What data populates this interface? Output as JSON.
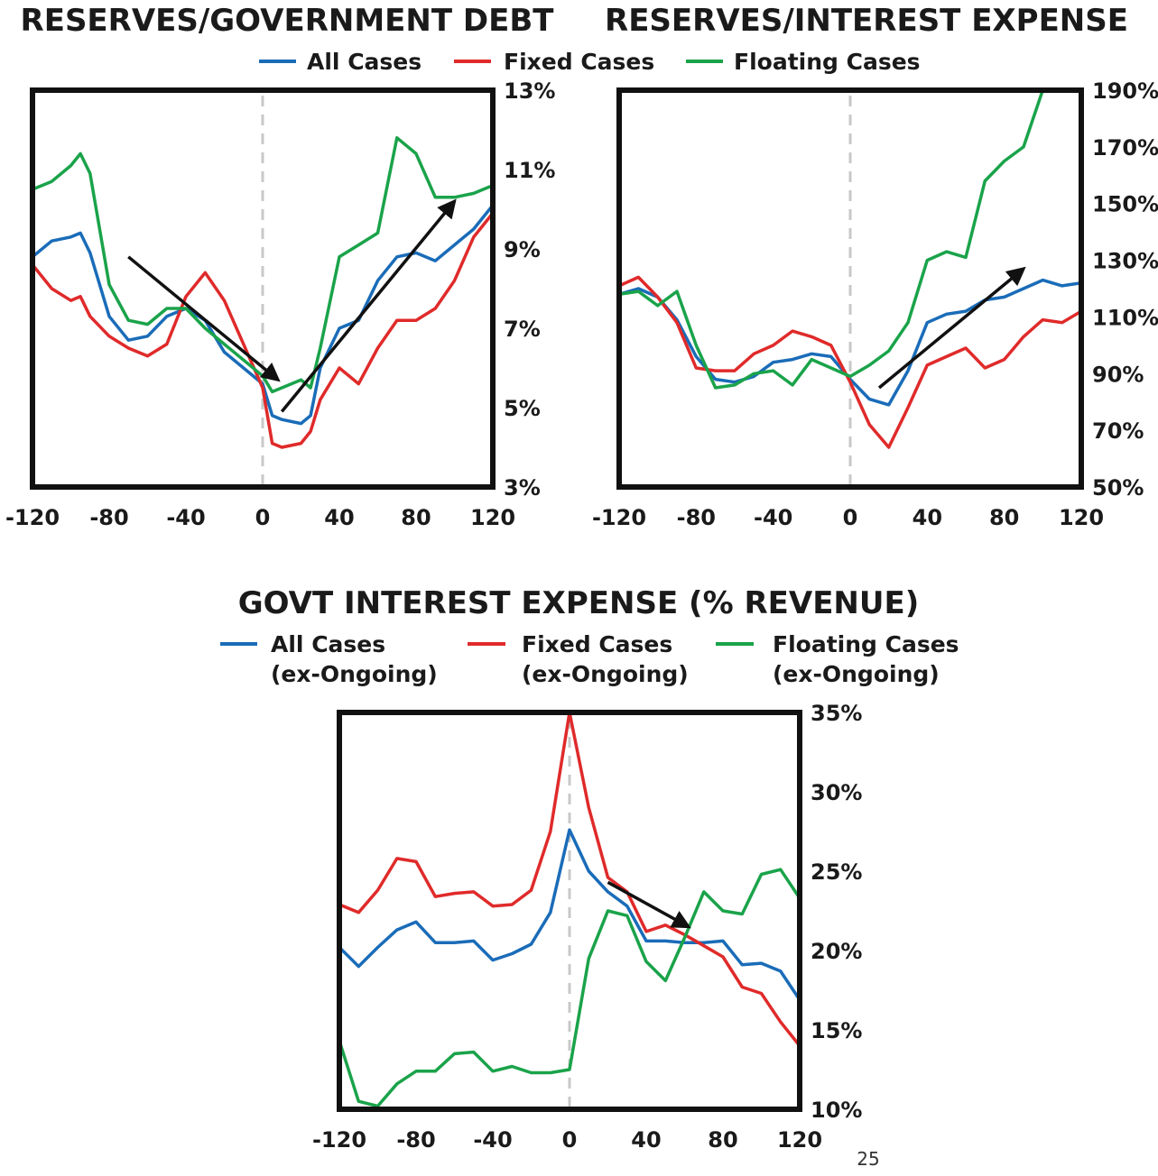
{
  "page_number": "25",
  "colors": {
    "all": "#1a6cb8",
    "fixed": "#e02a2a",
    "floating": "#1aa34a",
    "frame": "#111111",
    "zero_line": "#c8c8c8",
    "arrow": "#111111"
  },
  "top_legend": [
    {
      "label": "All Cases",
      "color": "#1a6cb8"
    },
    {
      "label": "Fixed Cases",
      "color": "#e02a2a"
    },
    {
      "label": "Floating Cases",
      "color": "#1aa34a"
    }
  ],
  "bottom_legend": [
    {
      "line1": "All Cases",
      "line2": "(ex-Ongoing)",
      "color": "#1a6cb8"
    },
    {
      "line1": "Fixed Cases",
      "line2": "(ex-Ongoing)",
      "color": "#e02a2a"
    },
    {
      "line1": "Floating Cases",
      "line2": "(ex-Ongoing)",
      "color": "#1aa34a"
    }
  ],
  "chart_data": [
    {
      "id": "reserves-debt",
      "type": "line",
      "title": "RESERVES/GOVERNMENT DEBT",
      "xlim": [
        -120,
        120
      ],
      "ylim": [
        3,
        13
      ],
      "xticks": [
        -120,
        -80,
        -40,
        0,
        40,
        80,
        120
      ],
      "xtick_labels": [
        "-120",
        "-80",
        "-40",
        "0",
        "40",
        "80",
        "120"
      ],
      "yticks": [
        3,
        5,
        7,
        9,
        11,
        13
      ],
      "ytick_labels": [
        "3%",
        "5%",
        "7%",
        "9%",
        "11%",
        "13%"
      ],
      "y_axis_side": "right",
      "grid": false,
      "x": [
        -120,
        -110,
        -100,
        -95,
        -90,
        -80,
        -70,
        -60,
        -50,
        -40,
        -30,
        -20,
        -10,
        0,
        5,
        10,
        20,
        25,
        30,
        40,
        50,
        60,
        70,
        80,
        90,
        100,
        110,
        120
      ],
      "series": [
        {
          "name": "All Cases",
          "values": [
            8.8,
            9.2,
            9.3,
            9.4,
            8.9,
            7.3,
            6.7,
            6.8,
            7.3,
            7.5,
            7.2,
            6.4,
            6.0,
            5.6,
            4.8,
            4.7,
            4.6,
            4.8,
            6.0,
            7.0,
            7.2,
            8.2,
            8.8,
            8.9,
            8.7,
            9.1,
            9.5,
            10.1
          ]
        },
        {
          "name": "Fixed Cases",
          "values": [
            8.6,
            8.0,
            7.7,
            7.8,
            7.3,
            6.8,
            6.5,
            6.3,
            6.6,
            7.8,
            8.4,
            7.7,
            6.6,
            5.5,
            4.1,
            4.0,
            4.1,
            4.4,
            5.2,
            6.0,
            5.6,
            6.5,
            7.2,
            7.2,
            7.5,
            8.2,
            9.3,
            9.9
          ]
        },
        {
          "name": "Floating Cases",
          "values": [
            10.5,
            10.7,
            11.1,
            11.4,
            10.9,
            8.1,
            7.2,
            7.1,
            7.5,
            7.5,
            7.0,
            6.6,
            6.2,
            5.8,
            5.4,
            5.5,
            5.7,
            5.5,
            6.5,
            8.8,
            9.1,
            9.4,
            11.8,
            11.4,
            10.3,
            10.3,
            10.4,
            10.6
          ]
        }
      ],
      "arrows": [
        {
          "from": [
            -70,
            8.8
          ],
          "to": [
            8,
            5.7
          ]
        },
        {
          "from": [
            10,
            4.9
          ],
          "to": [
            100,
            10.2
          ]
        }
      ]
    },
    {
      "id": "reserves-interest",
      "type": "line",
      "title": "RESERVES/INTEREST EXPENSE",
      "xlim": [
        -120,
        120
      ],
      "ylim": [
        50,
        190
      ],
      "xticks": [
        -120,
        -80,
        -40,
        0,
        40,
        80,
        120
      ],
      "xtick_labels": [
        "-120",
        "-80",
        "-40",
        "0",
        "40",
        "80",
        "120"
      ],
      "yticks": [
        50,
        70,
        90,
        110,
        130,
        150,
        170,
        190
      ],
      "ytick_labels": [
        "50%",
        "70%",
        "90%",
        "110%",
        "130%",
        "150%",
        "170%",
        "190%"
      ],
      "y_axis_side": "right",
      "grid": false,
      "x": [
        -120,
        -110,
        -100,
        -90,
        -80,
        -70,
        -60,
        -50,
        -40,
        -30,
        -20,
        -10,
        0,
        10,
        20,
        30,
        40,
        50,
        60,
        70,
        80,
        90,
        100,
        110,
        120
      ],
      "series": [
        {
          "name": "All Cases",
          "values": [
            118,
            120,
            117,
            109,
            96,
            88,
            87,
            89,
            94,
            95,
            97,
            96,
            88,
            81,
            79,
            91,
            108,
            111,
            112,
            116,
            117,
            120,
            123,
            121,
            122
          ]
        },
        {
          "name": "Fixed Cases",
          "values": [
            121,
            124,
            117,
            108,
            92,
            91,
            91,
            97,
            100,
            105,
            103,
            100,
            87,
            72,
            64,
            78,
            93,
            96,
            99,
            92,
            95,
            103,
            109,
            108,
            112
          ]
        },
        {
          "name": "Floating Cases",
          "values": [
            118,
            119,
            114,
            119,
            100,
            85,
            86,
            90,
            91,
            86,
            95,
            92,
            89,
            93,
            98,
            108,
            130,
            133,
            131,
            158,
            165,
            170,
            190,
            190,
            190
          ]
        }
      ],
      "arrows": [
        {
          "from": [
            15,
            85
          ],
          "to": [
            90,
            127
          ]
        }
      ]
    },
    {
      "id": "interest-revenue",
      "type": "line",
      "title": "GOVT INTEREST EXPENSE (% REVENUE)",
      "xlim": [
        -120,
        120
      ],
      "ylim": [
        10,
        35
      ],
      "xticks": [
        -120,
        -80,
        -40,
        0,
        40,
        80,
        120
      ],
      "xtick_labels": [
        "-120",
        "-80",
        "-40",
        "0",
        "40",
        "80",
        "120"
      ],
      "yticks": [
        10,
        15,
        20,
        25,
        30,
        35
      ],
      "ytick_labels": [
        "10%",
        "15%",
        "20%",
        "25%",
        "30%",
        "35%"
      ],
      "y_axis_side": "right",
      "grid": false,
      "x": [
        -120,
        -110,
        -100,
        -90,
        -80,
        -70,
        -60,
        -50,
        -40,
        -30,
        -20,
        -10,
        0,
        10,
        20,
        30,
        40,
        50,
        60,
        70,
        80,
        90,
        100,
        110,
        120
      ],
      "series": [
        {
          "name": "All Cases",
          "values": [
            20.2,
            19.0,
            20.2,
            21.3,
            21.8,
            20.5,
            20.5,
            20.6,
            19.4,
            19.8,
            20.4,
            22.4,
            27.6,
            25.0,
            23.7,
            22.8,
            20.6,
            20.6,
            20.5,
            20.5,
            20.6,
            19.1,
            19.2,
            18.7,
            16.9
          ]
        },
        {
          "name": "Fixed Cases",
          "values": [
            22.9,
            22.4,
            23.8,
            25.8,
            25.6,
            23.4,
            23.6,
            23.7,
            22.8,
            22.9,
            23.8,
            27.5,
            35.0,
            29.0,
            24.6,
            23.7,
            21.2,
            21.6,
            21.0,
            20.3,
            19.6,
            17.7,
            17.3,
            15.5,
            14.0
          ]
        },
        {
          "name": "Floating Cases",
          "values": [
            14.3,
            10.5,
            10.2,
            11.6,
            12.4,
            12.4,
            13.5,
            13.6,
            12.4,
            12.7,
            12.3,
            12.3,
            12.5,
            19.5,
            22.5,
            22.2,
            19.3,
            18.1,
            20.8,
            23.7,
            22.5,
            22.3,
            24.8,
            25.1,
            23.3
          ]
        }
      ],
      "arrows": [
        {
          "from": [
            20,
            24.3
          ],
          "to": [
            62,
            21.5
          ]
        }
      ]
    }
  ]
}
